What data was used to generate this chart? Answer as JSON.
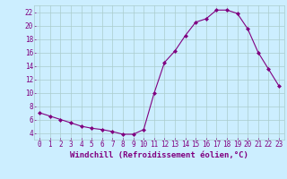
{
  "x": [
    0,
    1,
    2,
    3,
    4,
    5,
    6,
    7,
    8,
    9,
    10,
    11,
    12,
    13,
    14,
    15,
    16,
    17,
    18,
    19,
    20,
    21,
    22,
    23
  ],
  "y": [
    7.0,
    6.5,
    6.0,
    5.5,
    5.0,
    4.7,
    4.5,
    4.2,
    3.8,
    3.8,
    4.5,
    9.9,
    14.5,
    16.2,
    18.5,
    20.5,
    21.0,
    22.3,
    22.3,
    21.8,
    19.5,
    16.0,
    13.5,
    11.0
  ],
  "xlim": [
    -0.5,
    23.5
  ],
  "ylim": [
    3,
    23
  ],
  "yticks": [
    4,
    6,
    8,
    10,
    12,
    14,
    16,
    18,
    20,
    22
  ],
  "xticks": [
    0,
    1,
    2,
    3,
    4,
    5,
    6,
    7,
    8,
    9,
    10,
    11,
    12,
    13,
    14,
    15,
    16,
    17,
    18,
    19,
    20,
    21,
    22,
    23
  ],
  "xlabel": "Windchill (Refroidissement éolien,°C)",
  "line_color": "#800080",
  "marker": "D",
  "marker_size": 2.0,
  "bg_color": "#cceeff",
  "grid_color": "#aacccc",
  "tick_color": "#800080",
  "label_color": "#800080",
  "font_size_xlabel": 6.5,
  "font_size_ticks": 5.5
}
